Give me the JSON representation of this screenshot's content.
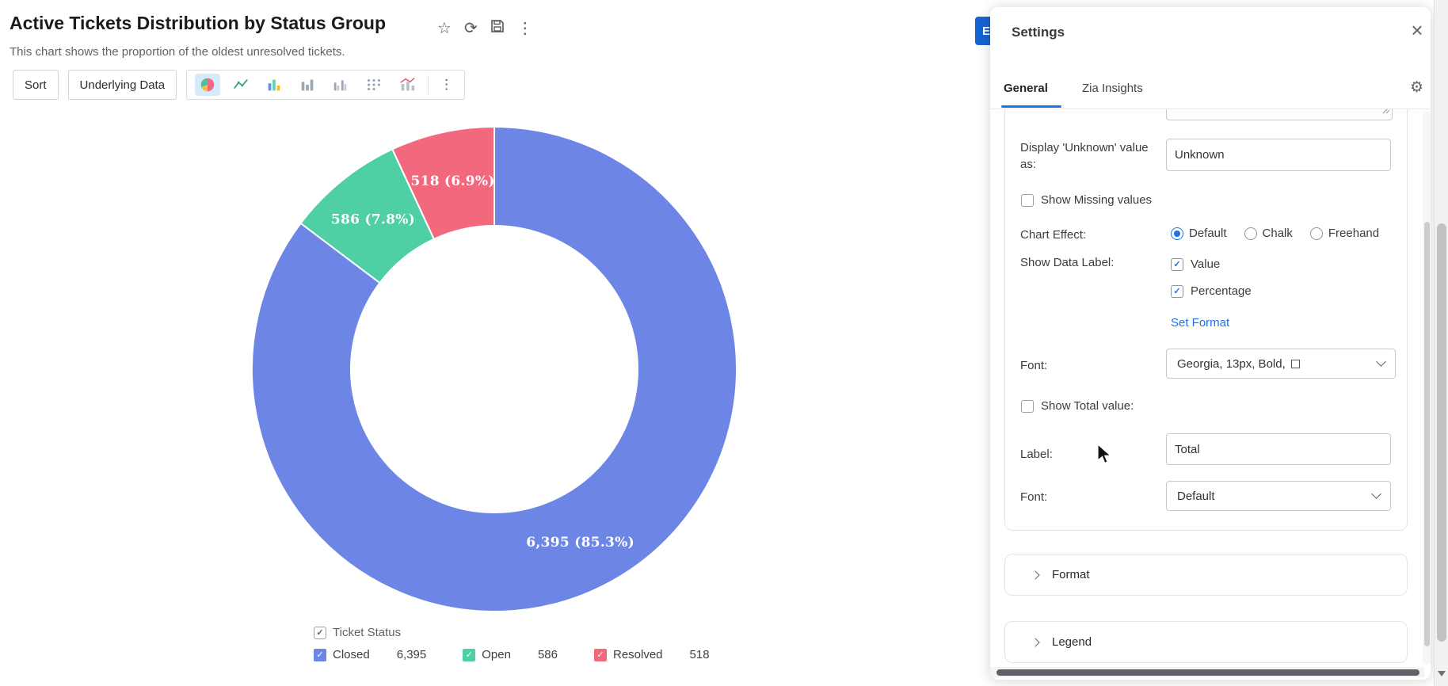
{
  "page": {
    "title": "Active Tickets Distribution by Status Group",
    "subtitle": "This chart shows the proportion of the oldest unresolved tickets."
  },
  "icons": {
    "star": "☆",
    "refresh": "⟳",
    "more_vertical": "⋮",
    "close": "×",
    "gear": "⚙"
  },
  "toolbar": {
    "sort_label": "Sort",
    "underlying_data_label": "Underlying Data"
  },
  "hidden_button": {
    "label": "E"
  },
  "chart_data": {
    "type": "pie",
    "subtype": "donut",
    "title": "Active Tickets Distribution by Status Group",
    "categories": [
      "Closed",
      "Open",
      "Resolved"
    ],
    "values": [
      6395,
      586,
      518
    ],
    "percentages": [
      85.3,
      7.8,
      6.9
    ],
    "data_labels": [
      "6,395 (85.3%)",
      "586 (7.8%)",
      "518 (6.9%)"
    ],
    "colors": [
      "#6d86e6",
      "#4fcfa6",
      "#f2687d"
    ],
    "start_angle_deg": -90,
    "direction": "clockwise",
    "inner_radius_ratio": 0.59,
    "legend_position": "bottom",
    "legend_title": "Ticket Status"
  },
  "legend": {
    "title": "Ticket Status",
    "items": [
      {
        "label": "Closed",
        "value": "6,395",
        "color": "#6d86e6"
      },
      {
        "label": "Open",
        "value": "586",
        "color": "#4fcfa6"
      },
      {
        "label": "Resolved",
        "value": "518",
        "color": "#f2687d"
      }
    ]
  },
  "settings": {
    "title": "Settings",
    "tabs": [
      {
        "label": "General",
        "active": true
      },
      {
        "label": "Zia Insights",
        "active": false
      }
    ],
    "fields": {
      "display_unknown_label": "Display 'Unknown' value as:",
      "display_unknown_value": "Unknown",
      "show_missing_label": "Show Missing values",
      "chart_effect_label": "Chart Effect:",
      "chart_effect_options": [
        "Default",
        "Chalk",
        "Freehand"
      ],
      "chart_effect_selected": "Default",
      "show_data_label_label": "Show Data Label:",
      "value_label": "Value",
      "percentage_label": "Percentage",
      "set_format_label": "Set Format",
      "font_label": "Font:",
      "font_value": "Georgia, 13px, Bold,",
      "show_total_label": "Show Total value:",
      "label_label": "Label:",
      "label_value": "Total",
      "font2_label": "Font:",
      "font2_value": "Default"
    },
    "sections": [
      "Format",
      "Legend"
    ]
  }
}
